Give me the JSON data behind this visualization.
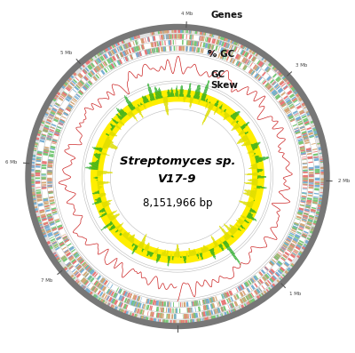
{
  "title_line1": "Streptomyces sp.",
  "title_line2": "V17-9",
  "genome_size": "8,151,966 bp",
  "label_genes": "Genes",
  "label_gc": "% GC",
  "label_gcskew1": "GC",
  "label_gcskew2": "Skew",
  "bg_color": "#ffffff",
  "outer_ring_color": "#888888",
  "n_points": 800,
  "genome_bp": 8151966,
  "tick_positions_mb": [
    0,
    1,
    2,
    3,
    4,
    5,
    6,
    7
  ],
  "tick_labels": [
    "",
    "1 Mb",
    "2 Mb",
    "3 Mb",
    "4 Mb",
    "5 Mb",
    "6 Mb",
    "7 Mb"
  ],
  "gene_colors_red": "#e87878",
  "gene_colors_blue": "#78afd4",
  "gene_colors_green": "#78c878",
  "gene_colors_orange": "#d4a878",
  "gc_color": "#cc2222",
  "gcskew_pos_color": "#22aa22",
  "gcskew_neg_color": "#dddd00",
  "separator_color": "#cccccc",
  "ring_gray": "#e0e0e0"
}
